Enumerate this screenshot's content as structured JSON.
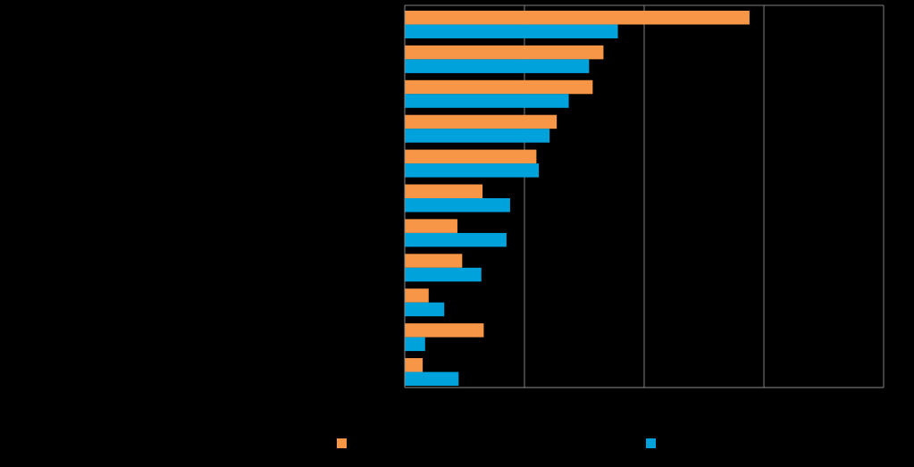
{
  "chart_data": {
    "type": "bar",
    "orientation": "horizontal",
    "title": "",
    "xlabel": "",
    "ylabel": "",
    "xlim": [
      0,
      4
    ],
    "grid": true,
    "legend_position": "bottom",
    "series": [
      {
        "name": "",
        "color": "#f79646",
        "values": [
          2.88,
          1.66,
          1.57,
          1.27,
          1.1,
          0.65,
          0.44,
          0.48,
          0.2,
          0.66,
          0.15
        ]
      },
      {
        "name": "",
        "color": "#00a2db",
        "values": [
          1.78,
          1.54,
          1.37,
          1.21,
          1.12,
          0.88,
          0.85,
          0.64,
          0.33,
          0.17,
          0.45
        ]
      }
    ]
  }
}
